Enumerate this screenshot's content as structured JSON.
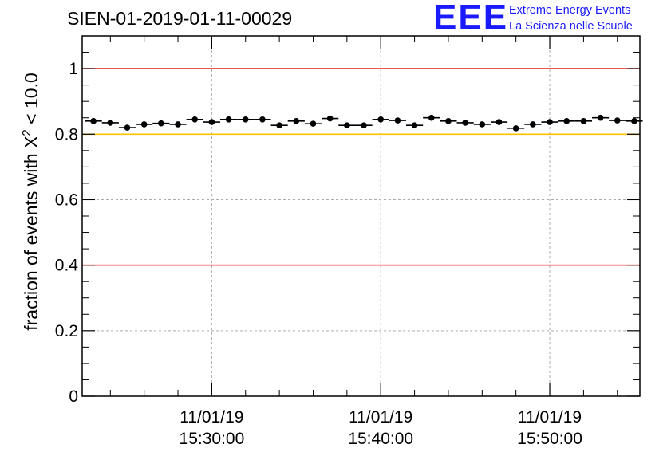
{
  "title": "SIEN-01-2019-01-11-00029",
  "logo": {
    "mark": "EEE",
    "line1": "Extreme Energy Events",
    "line2": "La Scienza nelle Scuole",
    "color": "#1a1aff"
  },
  "y_axis": {
    "label_prefix": "fraction of events with ",
    "label_symbol": "X",
    "label_superscript": "2",
    "label_suffix": " < 10.0",
    "ticks": [
      "0",
      "0.2",
      "0.4",
      "0.6",
      "0.8",
      "1"
    ]
  },
  "x_axis": {
    "ticks": [
      {
        "date": "11/01/19",
        "time": "15:30:00"
      },
      {
        "date": "11/01/19",
        "time": "15:40:00"
      },
      {
        "date": "11/01/19",
        "time": "15:50:00"
      }
    ]
  },
  "chart_data": {
    "type": "scatter",
    "title": "SIEN-01-2019-01-11-00029",
    "xlabel": "",
    "ylabel": "fraction of events with X^2 < 10.0",
    "xlim": [
      "15:22:20",
      "15:55:20"
    ],
    "ylim": [
      0,
      1.1
    ],
    "grid": true,
    "bin_width_minutes": 1,
    "x": [
      "15:23:00",
      "15:24:00",
      "15:25:00",
      "15:26:00",
      "15:27:00",
      "15:28:00",
      "15:29:00",
      "15:30:00",
      "15:31:00",
      "15:32:00",
      "15:33:00",
      "15:34:00",
      "15:35:00",
      "15:36:00",
      "15:37:00",
      "15:38:00",
      "15:39:00",
      "15:40:00",
      "15:41:00",
      "15:42:00",
      "15:43:00",
      "15:44:00",
      "15:45:00",
      "15:46:00",
      "15:47:00",
      "15:48:00",
      "15:49:00",
      "15:50:00",
      "15:51:00",
      "15:52:00",
      "15:53:00",
      "15:54:00",
      "15:55:00"
    ],
    "values": [
      0.84,
      0.835,
      0.82,
      0.83,
      0.833,
      0.83,
      0.845,
      0.837,
      0.845,
      0.845,
      0.845,
      0.827,
      0.84,
      0.832,
      0.848,
      0.827,
      0.827,
      0.845,
      0.842,
      0.827,
      0.85,
      0.84,
      0.835,
      0.83,
      0.837,
      0.818,
      0.83,
      0.837,
      0.84,
      0.84,
      0.85,
      0.842,
      0.84
    ],
    "reference_lines": [
      {
        "y": 1.0,
        "color": "#e8201c"
      },
      {
        "y": 0.8,
        "color": "#ffc000"
      },
      {
        "y": 0.4,
        "color": "#e8201c"
      }
    ]
  }
}
